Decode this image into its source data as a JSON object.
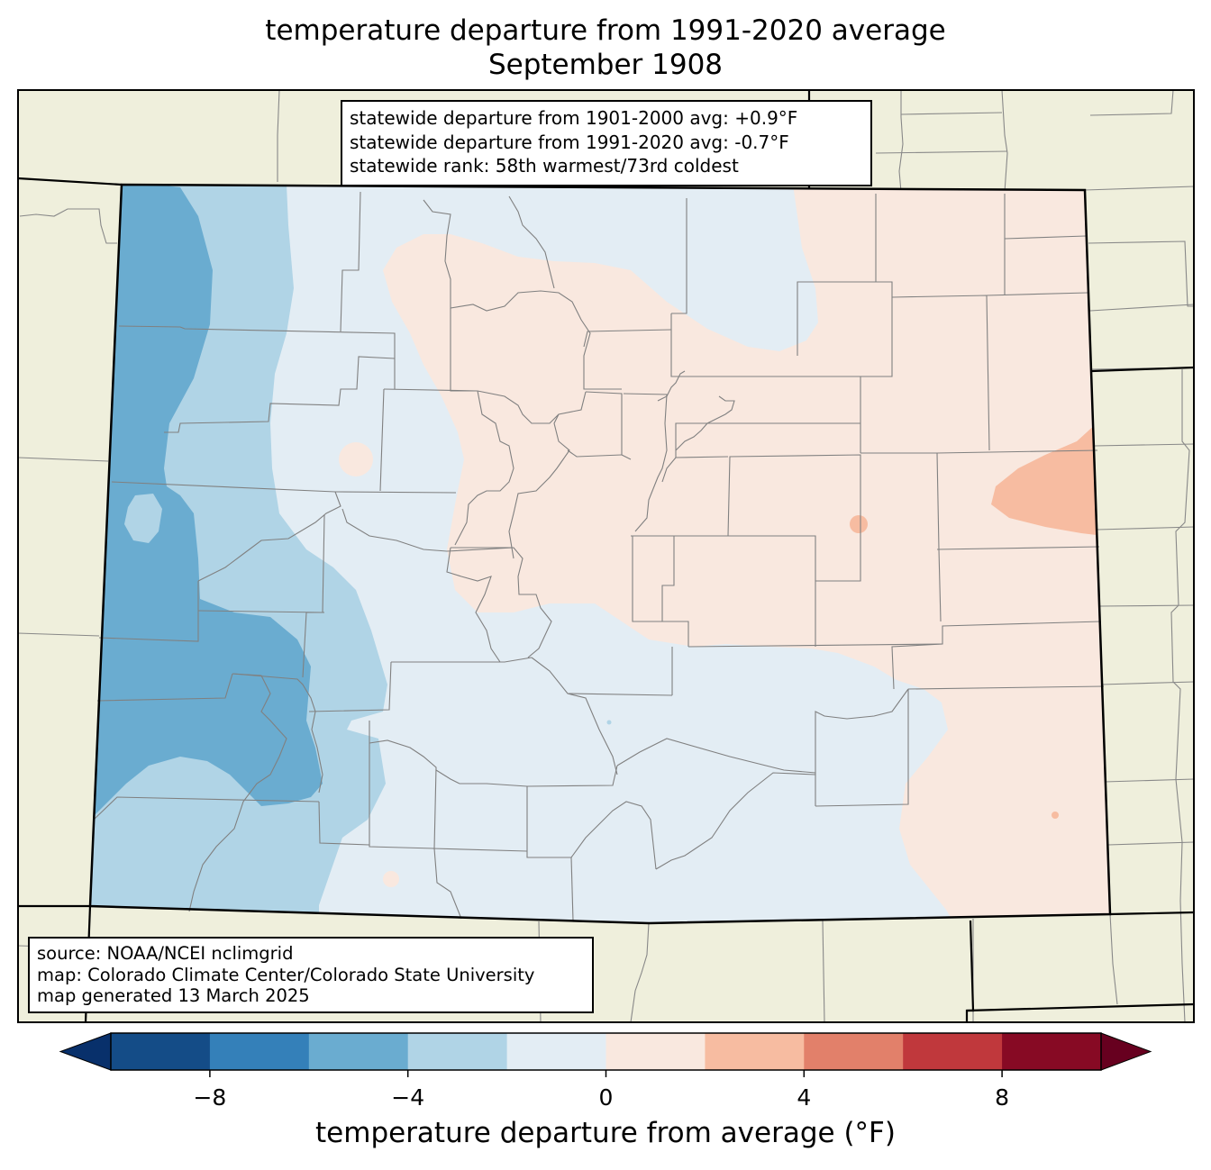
{
  "title": {
    "line1": "temperature departure from 1991-2020 average",
    "line2": "September 1908"
  },
  "stats_box": {
    "line1": "statewide departure from 1901-2000 avg: +0.9°F",
    "line2": "statewide departure from 1991-2020 avg: -0.7°F",
    "line3": "statewide rank: 58th warmest/73rd coldest"
  },
  "source_box": {
    "line1": "source: NOAA/NCEI nclimgrid",
    "line2": "map: Colorado Climate Center/Colorado State University",
    "line3": "map generated 13 March 2025"
  },
  "colorbar": {
    "label": "temperature departure from average (°F)",
    "ticks": [
      "−8",
      "−4",
      "0",
      "4",
      "8"
    ],
    "tick_values": [
      -8,
      -4,
      0,
      4,
      8
    ],
    "bounds": [
      -10,
      -8,
      -6,
      -4,
      -2,
      0,
      2,
      4,
      6,
      8,
      10
    ],
    "colors": [
      "#144c87",
      "#3480b9",
      "#6aacd0",
      "#b0d4e6",
      "#e3edf4",
      "#f9e8df",
      "#f7bca1",
      "#e2806a",
      "#c0383c",
      "#870a24"
    ],
    "under_color": "#08306b",
    "over_color": "#67001f"
  },
  "map_colors": {
    "background": "#efefdc",
    "minus_6_to_minus_4": "#6aacd0",
    "minus_4_to_minus_2": "#b0d4e6",
    "minus_2_to_0": "#e3edf4",
    "zero_to_2": "#f9e8df",
    "two_to_4": "#f7bca1"
  }
}
